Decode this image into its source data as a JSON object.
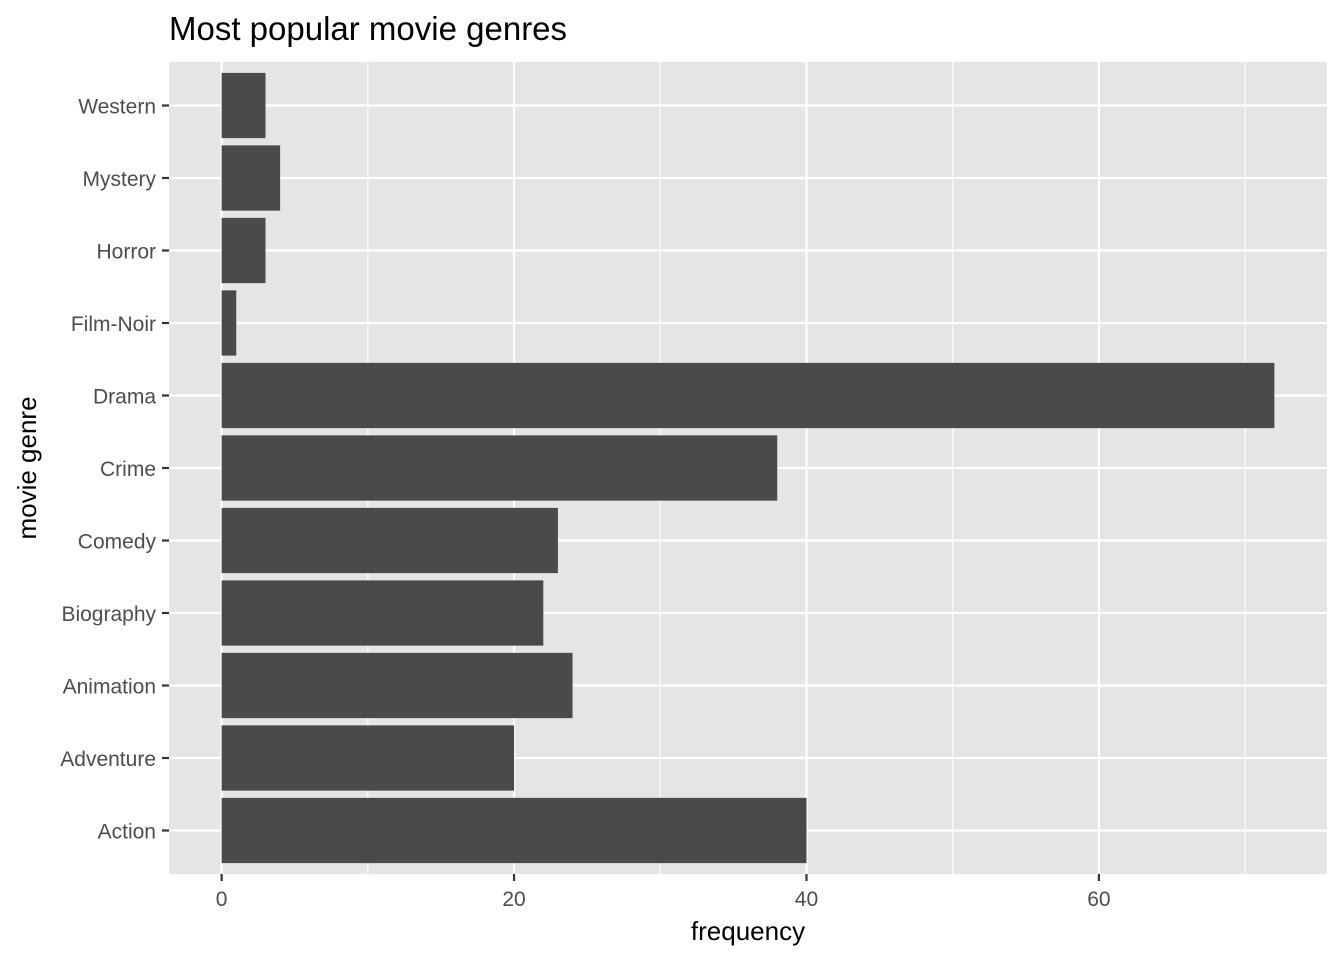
{
  "chart_data": {
    "type": "bar",
    "orientation": "horizontal",
    "title": "Most popular movie genres",
    "xlabel": "frequency",
    "ylabel": "movie genre",
    "categories": [
      "Action",
      "Adventure",
      "Animation",
      "Biography",
      "Comedy",
      "Crime",
      "Drama",
      "Film-Noir",
      "Horror",
      "Mystery",
      "Western"
    ],
    "values": [
      40,
      20,
      24,
      22,
      23,
      38,
      72,
      1,
      3,
      4,
      3
    ],
    "xlim": [
      -3.6,
      75.6
    ],
    "x_ticks": [
      0,
      20,
      40,
      60
    ],
    "grid": true,
    "bar_color": "#4a4a4a",
    "panel_background": "#e5e5e5",
    "grid_color": "#ffffff"
  }
}
